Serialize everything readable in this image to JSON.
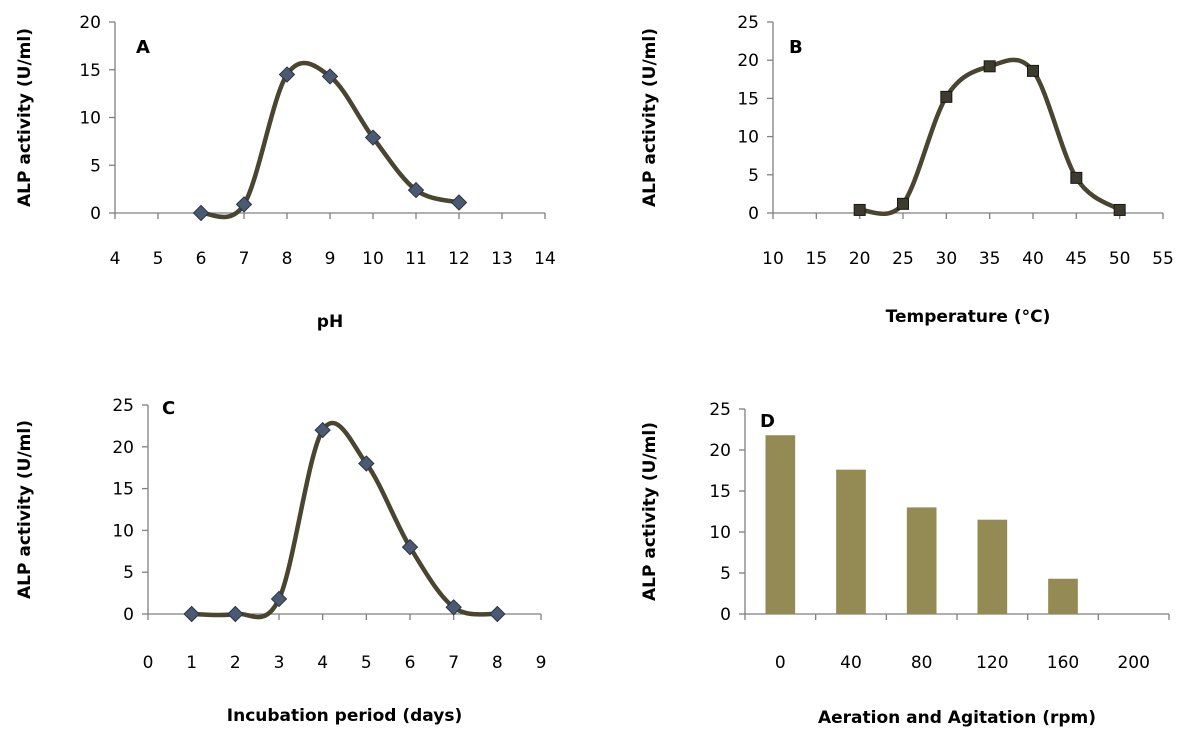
{
  "colors": {
    "line": "#4a4530",
    "marker_a": "#4a5a72",
    "marker_b": "#3d3a2e",
    "bar": "#948a54",
    "axis": "#808080"
  },
  "chart_data": [
    {
      "panel": "A",
      "type": "line",
      "marker": "diamond",
      "xlabel": "pH",
      "ylabel": "ALP activity (U/ml)",
      "xlim": [
        4,
        14
      ],
      "ylim": [
        0,
        20
      ],
      "xticks": [
        "4",
        "5",
        "6",
        "7",
        "8",
        "9",
        "10",
        "11",
        "12",
        "13",
        "14"
      ],
      "yticks": [
        "0",
        "5",
        "10",
        "15",
        "20"
      ],
      "series": [
        {
          "x": [
            6,
            7,
            8,
            9,
            10,
            11,
            12
          ],
          "y": [
            0,
            0.9,
            14.5,
            14.3,
            7.9,
            2.4,
            1.1
          ]
        }
      ]
    },
    {
      "panel": "B",
      "type": "line",
      "marker": "square",
      "xlabel": "Temperature (°C)",
      "ylabel": "ALP activity (U/ml)",
      "xlim": [
        10,
        55
      ],
      "ylim": [
        0,
        25
      ],
      "xticks": [
        "10",
        "15",
        "20",
        "25",
        "30",
        "35",
        "40",
        "45",
        "50",
        "55"
      ],
      "yticks": [
        "0",
        "5",
        "10",
        "15",
        "20",
        "25"
      ],
      "series": [
        {
          "x": [
            20,
            25,
            30,
            35,
            40,
            45,
            50
          ],
          "y": [
            0.4,
            1.2,
            15.2,
            19.2,
            18.6,
            4.6,
            0.4
          ]
        }
      ]
    },
    {
      "panel": "C",
      "type": "line",
      "marker": "diamond",
      "xlabel": "Incubation period (days)",
      "ylabel": "ALP activity (U/ml)",
      "xlim": [
        0,
        9
      ],
      "ylim": [
        0,
        25
      ],
      "xticks": [
        "0",
        "1",
        "2",
        "3",
        "4",
        "5",
        "6",
        "7",
        "8",
        "9"
      ],
      "yticks": [
        "0",
        "5",
        "10",
        "15",
        "20",
        "25"
      ],
      "series": [
        {
          "x": [
            1,
            2,
            3,
            4,
            5,
            6,
            7,
            8
          ],
          "y": [
            0,
            0,
            1.8,
            22,
            18,
            8,
            0.8,
            0
          ]
        }
      ]
    },
    {
      "panel": "D",
      "type": "bar",
      "xlabel": "Aeration and Agitation (rpm)",
      "ylabel": "ALP activity (U/ml)",
      "ylim": [
        0,
        25
      ],
      "yticks": [
        "0",
        "5",
        "10",
        "15",
        "20",
        "25"
      ],
      "categories": [
        "0",
        "40",
        "80",
        "120",
        "160",
        "200"
      ],
      "values": [
        21.8,
        17.6,
        13,
        11.5,
        4.3,
        0
      ]
    }
  ]
}
